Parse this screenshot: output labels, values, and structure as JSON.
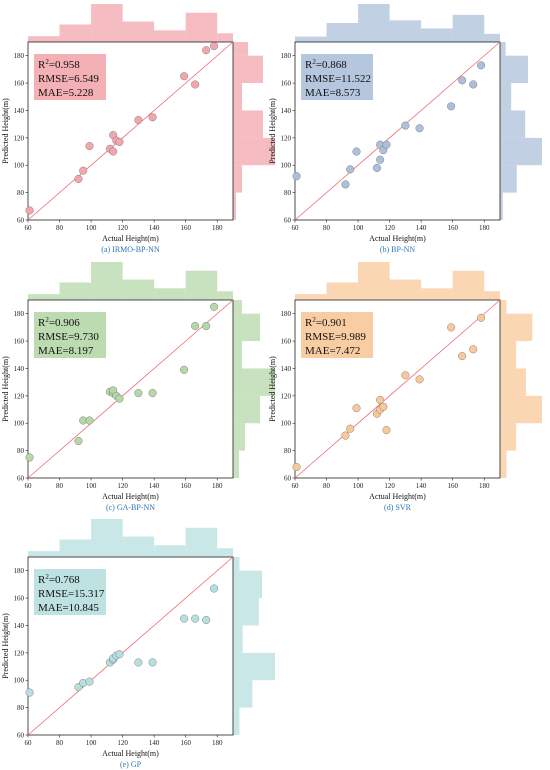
{
  "chart_data": [
    {
      "type": "scatter",
      "caption": "(a) IRMO-BP-NN",
      "xlabel": "Actual Height(m)",
      "ylabel": "Predicted Height(m)",
      "xlim": [
        60,
        190
      ],
      "ylim": [
        60,
        190
      ],
      "xticks": [
        60,
        80,
        100,
        120,
        140,
        160,
        180
      ],
      "yticks": [
        60,
        80,
        100,
        120,
        140,
        160,
        180
      ],
      "color": "#f2a7ad",
      "stats": {
        "r2_label": "R",
        "r2_sup": "2",
        "r2_value": "=0.958",
        "rmse": "RMSE=6.549",
        "mae": "MAE=5.228"
      },
      "points": [
        [
          61,
          67
        ],
        [
          92,
          90
        ],
        [
          95,
          96
        ],
        [
          99,
          114
        ],
        [
          112,
          112
        ],
        [
          114,
          110
        ],
        [
          114,
          122
        ],
        [
          116,
          118
        ],
        [
          118,
          117
        ],
        [
          130,
          133
        ],
        [
          139,
          135
        ],
        [
          159,
          165
        ],
        [
          166,
          159
        ],
        [
          173,
          184
        ],
        [
          178,
          187
        ]
      ],
      "x_hist": [
        [
          60,
          80,
          2
        ],
        [
          80,
          100,
          6
        ],
        [
          100,
          120,
          13
        ],
        [
          120,
          140,
          7
        ],
        [
          140,
          160,
          4
        ],
        [
          160,
          180,
          10
        ],
        [
          180,
          190,
          3
        ]
      ],
      "y_hist": [
        [
          60,
          80,
          1
        ],
        [
          80,
          100,
          3
        ],
        [
          100,
          120,
          14
        ],
        [
          120,
          140,
          10
        ],
        [
          140,
          160,
          3
        ],
        [
          160,
          180,
          10
        ],
        [
          180,
          190,
          5
        ]
      ]
    },
    {
      "type": "scatter",
      "caption": "(b) BP-NN",
      "xlabel": "Actual Height(m)",
      "ylabel": "Predicted Height(m)",
      "xlim": [
        60,
        190
      ],
      "ylim": [
        60,
        190
      ],
      "xticks": [
        60,
        80,
        100,
        120,
        140,
        160,
        180
      ],
      "yticks": [
        60,
        80,
        100,
        120,
        140,
        160,
        180
      ],
      "color": "#adc0db",
      "stats": {
        "r2_label": "R",
        "r2_sup": "2",
        "r2_value": "=0.868",
        "rmse": "RMSE=11.522",
        "mae": "MAE=8.573"
      },
      "points": [
        [
          61,
          92
        ],
        [
          92,
          86
        ],
        [
          95,
          97
        ],
        [
          99,
          110
        ],
        [
          112,
          98
        ],
        [
          114,
          104
        ],
        [
          114,
          115
        ],
        [
          116,
          111
        ],
        [
          118,
          115
        ],
        [
          130,
          129
        ],
        [
          139,
          127
        ],
        [
          159,
          143
        ],
        [
          166,
          162
        ],
        [
          173,
          159
        ],
        [
          178,
          173
        ]
      ],
      "x_hist": [
        [
          60,
          80,
          2
        ],
        [
          80,
          100,
          7
        ],
        [
          100,
          120,
          14
        ],
        [
          120,
          140,
          8
        ],
        [
          140,
          160,
          5
        ],
        [
          160,
          180,
          10
        ],
        [
          180,
          190,
          3
        ]
      ],
      "y_hist": [
        [
          60,
          80,
          1
        ],
        [
          80,
          100,
          6
        ],
        [
          100,
          120,
          15
        ],
        [
          120,
          140,
          9
        ],
        [
          140,
          160,
          4
        ],
        [
          160,
          180,
          10
        ],
        [
          180,
          190,
          2
        ]
      ]
    },
    {
      "type": "scatter",
      "caption": "(c) GA-BP-NN",
      "xlabel": "Actual Height(m)",
      "ylabel": "Predicted Height(m)",
      "xlim": [
        60,
        190
      ],
      "ylim": [
        60,
        190
      ],
      "xticks": [
        60,
        80,
        100,
        120,
        140,
        160,
        180
      ],
      "yticks": [
        60,
        80,
        100,
        120,
        140,
        160,
        180
      ],
      "color": "#b6d7a8",
      "stats": {
        "r2_label": "R",
        "r2_sup": "2",
        "r2_value": "=0.906",
        "rmse": "RMSE=9.730",
        "mae": "MAE=8.197"
      },
      "points": [
        [
          61,
          75
        ],
        [
          92,
          87
        ],
        [
          95,
          102
        ],
        [
          99,
          102
        ],
        [
          112,
          123
        ],
        [
          114,
          122
        ],
        [
          114,
          124
        ],
        [
          116,
          120
        ],
        [
          118,
          118
        ],
        [
          130,
          122
        ],
        [
          139,
          122
        ],
        [
          159,
          139
        ],
        [
          166,
          171
        ],
        [
          173,
          171
        ],
        [
          178,
          185
        ]
      ],
      "x_hist": [
        [
          60,
          80,
          2
        ],
        [
          80,
          100,
          6
        ],
        [
          100,
          120,
          13
        ],
        [
          120,
          140,
          7
        ],
        [
          140,
          160,
          4
        ],
        [
          160,
          180,
          10
        ],
        [
          180,
          190,
          3
        ]
      ],
      "y_hist": [
        [
          60,
          80,
          2
        ],
        [
          80,
          100,
          4
        ],
        [
          100,
          120,
          9
        ],
        [
          120,
          140,
          14
        ],
        [
          140,
          160,
          3
        ],
        [
          160,
          180,
          9
        ],
        [
          180,
          190,
          3
        ]
      ]
    },
    {
      "type": "scatter",
      "caption": "(d) SVR",
      "xlabel": "Actual Height(m)",
      "ylabel": "Predicted Height(m)",
      "xlim": [
        60,
        190
      ],
      "ylim": [
        60,
        190
      ],
      "xticks": [
        60,
        80,
        100,
        120,
        140,
        160,
        180
      ],
      "yticks": [
        60,
        80,
        100,
        120,
        140,
        160,
        180
      ],
      "color": "#f8c89a",
      "stats": {
        "r2_label": "R",
        "r2_sup": "2",
        "r2_value": "=0.901",
        "rmse": "RMSE=9.989",
        "mae": "MAE=7.472"
      },
      "points": [
        [
          61,
          68
        ],
        [
          92,
          91
        ],
        [
          95,
          96
        ],
        [
          99,
          111
        ],
        [
          112,
          107
        ],
        [
          114,
          110
        ],
        [
          114,
          117
        ],
        [
          116,
          112
        ],
        [
          118,
          95
        ],
        [
          130,
          135
        ],
        [
          139,
          132
        ],
        [
          159,
          170
        ],
        [
          166,
          149
        ],
        [
          173,
          154
        ],
        [
          178,
          177
        ]
      ],
      "x_hist": [
        [
          60,
          80,
          2
        ],
        [
          80,
          100,
          6
        ],
        [
          100,
          120,
          13
        ],
        [
          120,
          140,
          7
        ],
        [
          140,
          160,
          4
        ],
        [
          160,
          180,
          10
        ],
        [
          180,
          190,
          3
        ]
      ],
      "y_hist": [
        [
          60,
          80,
          2
        ],
        [
          80,
          100,
          5
        ],
        [
          100,
          120,
          13
        ],
        [
          120,
          140,
          8
        ],
        [
          140,
          160,
          5
        ],
        [
          160,
          180,
          10
        ],
        [
          180,
          190,
          2
        ]
      ]
    },
    {
      "type": "scatter",
      "caption": "(e) GP",
      "xlabel": "Actual Height(m)",
      "ylabel": "Predicted Height(m)",
      "xlim": [
        60,
        190
      ],
      "ylim": [
        60,
        190
      ],
      "xticks": [
        60,
        80,
        100,
        120,
        140,
        160,
        180
      ],
      "yticks": [
        60,
        80,
        100,
        120,
        140,
        160,
        180
      ],
      "color": "#b7dfdf",
      "stats": {
        "r2_label": "R",
        "r2_sup": "2",
        "r2_value": "=0.768",
        "rmse": "RMSE=15.317",
        "mae": "MAE=10.845"
      },
      "points": [
        [
          61,
          91
        ],
        [
          92,
          95
        ],
        [
          95,
          98
        ],
        [
          99,
          99
        ],
        [
          112,
          113
        ],
        [
          114,
          115
        ],
        [
          114,
          116
        ],
        [
          116,
          118
        ],
        [
          118,
          119
        ],
        [
          130,
          113
        ],
        [
          139,
          113
        ],
        [
          159,
          145
        ],
        [
          166,
          145
        ],
        [
          173,
          144
        ],
        [
          178,
          167
        ]
      ],
      "x_hist": [
        [
          60,
          80,
          2
        ],
        [
          80,
          100,
          6
        ],
        [
          100,
          120,
          13
        ],
        [
          120,
          140,
          7
        ],
        [
          140,
          160,
          4
        ],
        [
          160,
          180,
          10
        ],
        [
          180,
          190,
          3
        ]
      ],
      "y_hist": [
        [
          60,
          80,
          2
        ],
        [
          80,
          100,
          6
        ],
        [
          100,
          120,
          13
        ],
        [
          120,
          140,
          3
        ],
        [
          140,
          160,
          8
        ],
        [
          160,
          180,
          9
        ],
        [
          180,
          190,
          2
        ]
      ]
    }
  ]
}
